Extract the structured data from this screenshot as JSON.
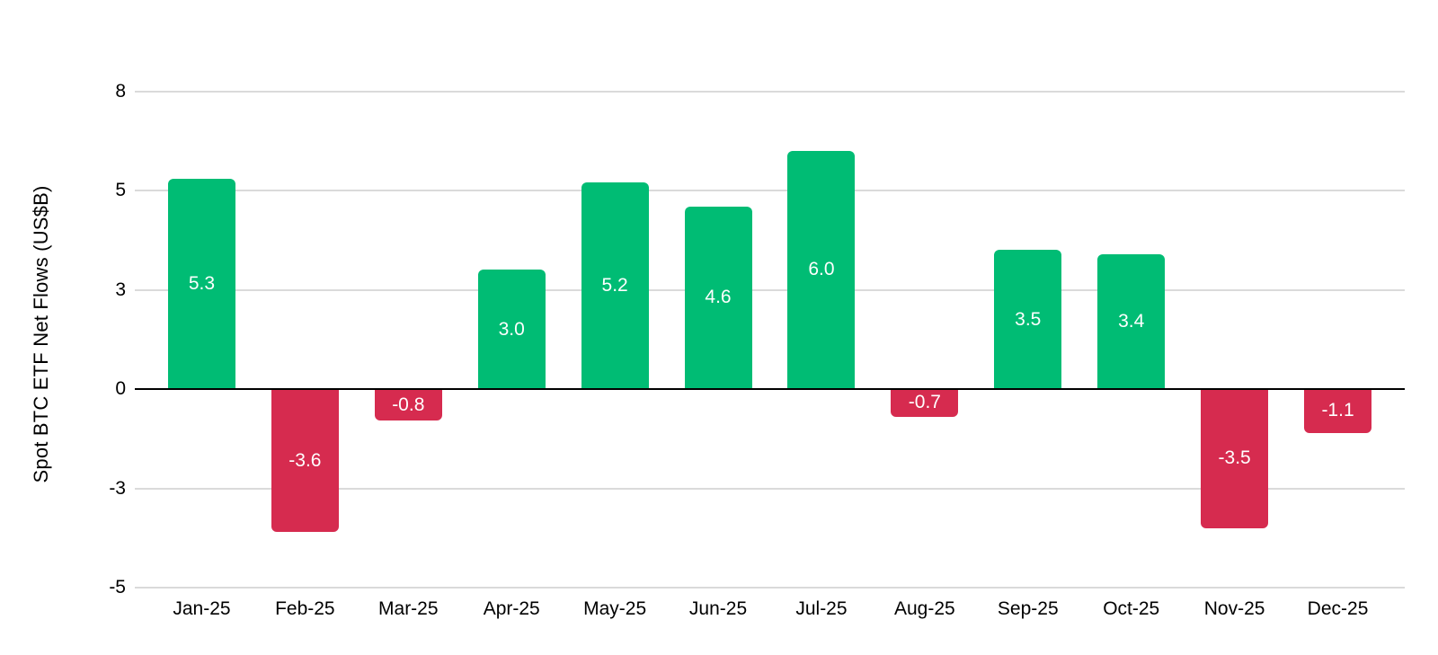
{
  "chart_data": {
    "type": "bar",
    "title": "",
    "xlabel": "",
    "ylabel": "Spot BTC ETF Net Flows (US$B)",
    "categories": [
      "Jan-25",
      "Feb-25",
      "Mar-25",
      "Apr-25",
      "May-25",
      "Jun-25",
      "Jul-25",
      "Aug-25",
      "Sep-25",
      "Oct-25",
      "Nov-25",
      "Dec-25"
    ],
    "values": [
      5.3,
      -3.6,
      -0.8,
      3.0,
      5.2,
      4.6,
      6.0,
      -0.7,
      3.5,
      3.4,
      -3.5,
      -1.1
    ],
    "value_labels": [
      "5.3",
      "-3.6",
      "-0.8",
      "3.0",
      "5.2",
      "4.6",
      "6.0",
      "-0.7",
      "3.5",
      "3.4",
      "-3.5",
      "-1.1"
    ],
    "ylim": [
      -5,
      7.5
    ],
    "y_ticks": [
      {
        "label": "8",
        "value": 7.5
      },
      {
        "label": "5",
        "value": 5
      },
      {
        "label": "3",
        "value": 2.5
      },
      {
        "label": "0",
        "value": 0
      },
      {
        "label": "-3",
        "value": -2.5
      },
      {
        "label": "-5",
        "value": -5
      }
    ],
    "grid": true,
    "legend": false,
    "colors": {
      "positive_bar": "#00BC74",
      "negative_bar": "#D62B4F",
      "gridline": "#DADADA",
      "zero_axis": "#000000",
      "axis_text": "#000000",
      "bar_label_text": "#FFFFFF",
      "background": "#FFFFFF"
    }
  }
}
